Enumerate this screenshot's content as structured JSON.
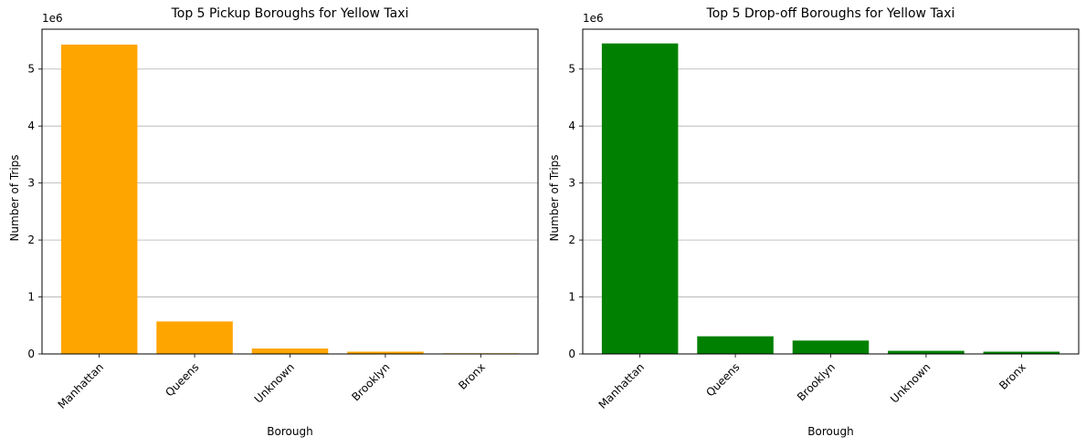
{
  "chart_data": [
    {
      "type": "bar",
      "title": "Top 5 Pickup Boroughs for Yellow Taxi",
      "xlabel": "Borough",
      "ylabel": "Number of Trips",
      "scale_label": "1e6",
      "categories": [
        "Manhattan",
        "Queens",
        "Unknown",
        "Brooklyn",
        "Bronx"
      ],
      "values": [
        5430000,
        570000,
        95000,
        40000,
        12000
      ],
      "color": "#FFA500",
      "ylim": [
        0,
        5700000
      ],
      "yticks": [
        0,
        1000000,
        2000000,
        3000000,
        4000000,
        5000000
      ],
      "ytick_labels": [
        "0",
        "1",
        "2",
        "3",
        "4",
        "5"
      ],
      "grid": "y"
    },
    {
      "type": "bar",
      "title": "Top 5 Drop-off Boroughs for Yellow Taxi",
      "xlabel": "Borough",
      "ylabel": "Number of Trips",
      "scale_label": "1e6",
      "categories": [
        "Manhattan",
        "Queens",
        "Brooklyn",
        "Unknown",
        "Bronx"
      ],
      "values": [
        5450000,
        310000,
        235000,
        55000,
        40000
      ],
      "color": "#008000",
      "ylim": [
        0,
        5700000
      ],
      "yticks": [
        0,
        1000000,
        2000000,
        3000000,
        4000000,
        5000000
      ],
      "ytick_labels": [
        "0",
        "1",
        "2",
        "3",
        "4",
        "5"
      ],
      "grid": "y"
    }
  ]
}
